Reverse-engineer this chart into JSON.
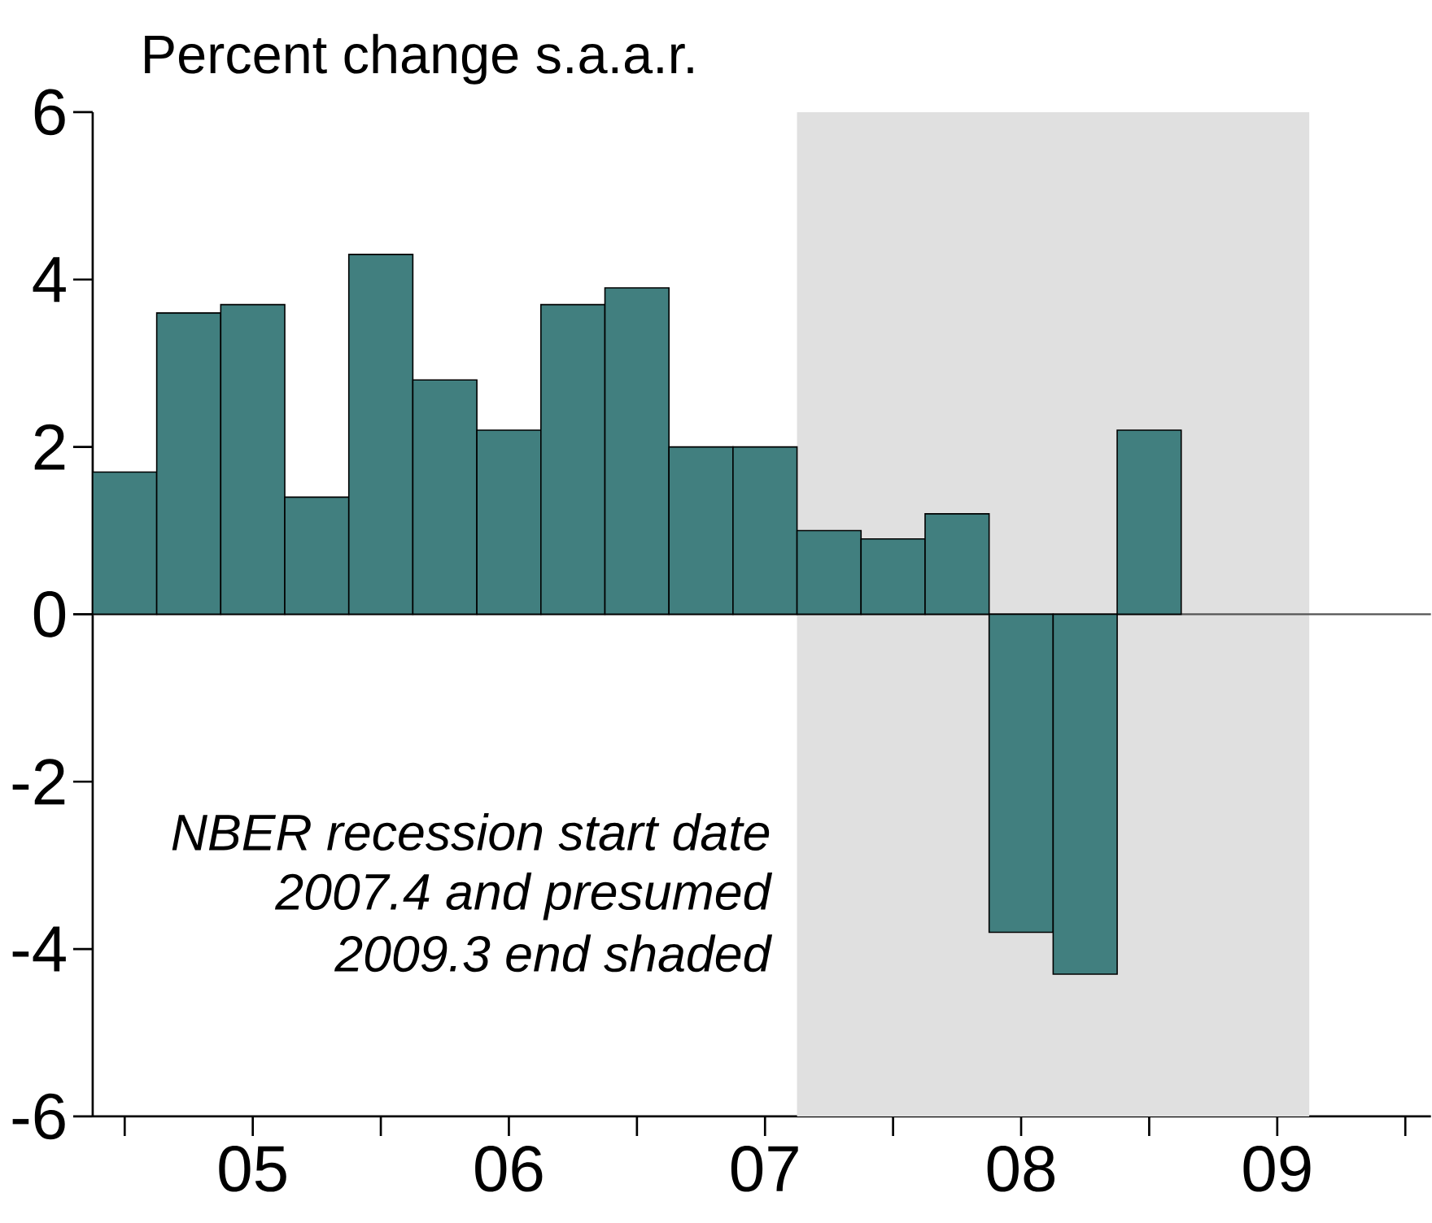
{
  "chart_data": {
    "type": "bar",
    "ylabel": "Percent change s.a.a.r.",
    "categories": [
      null,
      null,
      "05",
      null,
      null,
      null,
      "06",
      null,
      null,
      null,
      "07",
      null,
      null,
      null,
      "08",
      null,
      null,
      null,
      "09",
      null,
      null
    ],
    "values": [
      1.7,
      3.6,
      3.7,
      1.4,
      4.3,
      2.8,
      2.2,
      3.7,
      3.9,
      2.0,
      2.0,
      1.0,
      0.9,
      1.2,
      -3.8,
      -4.3,
      2.2,
      null,
      null,
      null,
      null
    ],
    "color": "#417f7f",
    "ylim": [
      -6,
      6
    ],
    "yticks": [
      -6,
      -4,
      -2,
      0,
      2,
      4,
      6
    ],
    "ref_lines": [
      {
        "axis": "y",
        "value": 0,
        "color": "#555555"
      }
    ],
    "annotations": [
      "NBER recession start date",
      "2007.4 and presumed",
      "2009.3 end shaded"
    ]
  }
}
